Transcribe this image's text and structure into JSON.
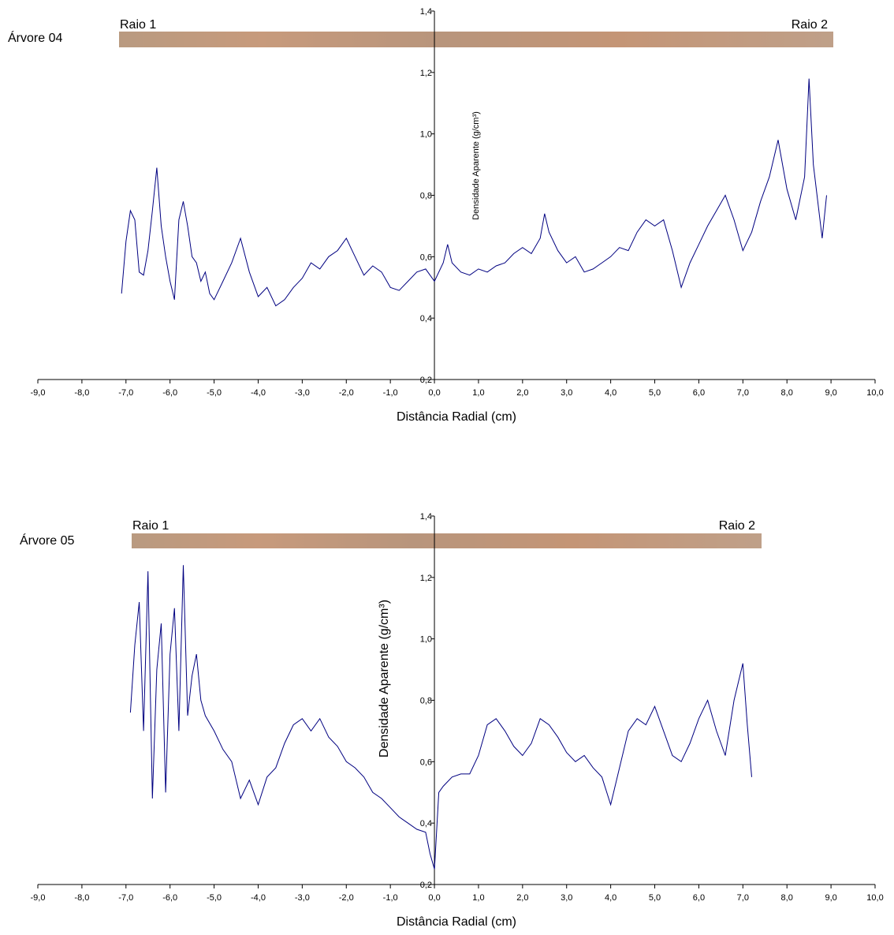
{
  "chart_data": [
    {
      "type": "line",
      "tree_label": "Árvore 04",
      "left_label": "Raio 1",
      "right_label": "Raio 2",
      "xlabel": "Distância Radial (cm)",
      "ylabel": "Densidade Aparente (g/cm³)",
      "color": "#000080",
      "xlim": [
        -9,
        10
      ],
      "ylim": [
        0.2,
        1.4
      ],
      "xticks": [
        {
          "value": -9,
          "label": "-9,0"
        },
        {
          "value": -8,
          "label": "-8,0"
        },
        {
          "value": -7,
          "label": "-7,0"
        },
        {
          "value": -6,
          "label": "-6,0"
        },
        {
          "value": -5,
          "label": "-5,0"
        },
        {
          "value": -4,
          "label": "-4,0"
        },
        {
          "value": -3,
          "label": "-3,0"
        },
        {
          "value": -2,
          "label": "-2,0"
        },
        {
          "value": -1,
          "label": "-1,0"
        },
        {
          "value": 0,
          "label": "0,0"
        },
        {
          "value": 1,
          "label": "1,0"
        },
        {
          "value": 2,
          "label": "2,0"
        },
        {
          "value": 3,
          "label": "3,0"
        },
        {
          "value": 4,
          "label": "4,0"
        },
        {
          "value": 5,
          "label": "5,0"
        },
        {
          "value": 6,
          "label": "6,0"
        },
        {
          "value": 7,
          "label": "7,0"
        },
        {
          "value": 8,
          "label": "8,0"
        },
        {
          "value": 9,
          "label": "9,0"
        },
        {
          "value": 10,
          "label": "10,0"
        }
      ],
      "yticks": [
        {
          "value": 0.2,
          "label": "0,2"
        },
        {
          "value": 0.4,
          "label": "0,4"
        },
        {
          "value": 0.6,
          "label": "0,6"
        },
        {
          "value": 0.8,
          "label": "0,8"
        },
        {
          "value": 1.0,
          "label": "1,0"
        },
        {
          "value": 1.2,
          "label": "1,2"
        },
        {
          "value": 1.4,
          "label": "1,4"
        }
      ],
      "x": [
        -7.1,
        -7.0,
        -6.9,
        -6.8,
        -6.7,
        -6.6,
        -6.5,
        -6.4,
        -6.3,
        -6.2,
        -6.1,
        -6.0,
        -5.9,
        -5.8,
        -5.7,
        -5.6,
        -5.5,
        -5.4,
        -5.3,
        -5.2,
        -5.1,
        -5.0,
        -4.8,
        -4.6,
        -4.4,
        -4.2,
        -4.0,
        -3.8,
        -3.6,
        -3.4,
        -3.2,
        -3.0,
        -2.8,
        -2.6,
        -2.4,
        -2.2,
        -2.0,
        -1.8,
        -1.6,
        -1.4,
        -1.2,
        -1.0,
        -0.8,
        -0.6,
        -0.4,
        -0.2,
        0.0,
        0.2,
        0.3,
        0.4,
        0.6,
        0.8,
        1.0,
        1.2,
        1.4,
        1.6,
        1.8,
        2.0,
        2.2,
        2.4,
        2.5,
        2.6,
        2.8,
        3.0,
        3.2,
        3.4,
        3.6,
        3.8,
        4.0,
        4.2,
        4.4,
        4.6,
        4.8,
        5.0,
        5.2,
        5.4,
        5.6,
        5.8,
        6.0,
        6.2,
        6.4,
        6.6,
        6.8,
        7.0,
        7.2,
        7.4,
        7.6,
        7.8,
        8.0,
        8.2,
        8.4,
        8.5,
        8.6,
        8.8,
        8.9
      ],
      "values": [
        0.48,
        0.65,
        0.75,
        0.72,
        0.55,
        0.54,
        0.62,
        0.75,
        0.89,
        0.7,
        0.6,
        0.52,
        0.46,
        0.72,
        0.78,
        0.7,
        0.6,
        0.58,
        0.52,
        0.55,
        0.48,
        0.46,
        0.52,
        0.58,
        0.66,
        0.55,
        0.47,
        0.5,
        0.44,
        0.46,
        0.5,
        0.53,
        0.58,
        0.56,
        0.6,
        0.62,
        0.66,
        0.6,
        0.54,
        0.57,
        0.55,
        0.5,
        0.49,
        0.52,
        0.55,
        0.56,
        0.52,
        0.58,
        0.64,
        0.58,
        0.55,
        0.54,
        0.56,
        0.55,
        0.57,
        0.58,
        0.61,
        0.63,
        0.61,
        0.66,
        0.74,
        0.68,
        0.62,
        0.58,
        0.6,
        0.55,
        0.56,
        0.58,
        0.6,
        0.63,
        0.62,
        0.68,
        0.72,
        0.7,
        0.72,
        0.62,
        0.5,
        0.58,
        0.64,
        0.7,
        0.75,
        0.8,
        0.72,
        0.62,
        0.68,
        0.78,
        0.86,
        0.98,
        0.82,
        0.72,
        0.86,
        1.18,
        0.9,
        0.66,
        0.8
      ]
    },
    {
      "type": "line",
      "tree_label": "Árvore 05",
      "left_label": "Raio 1",
      "right_label": "Raio 2",
      "xlabel": "Distância Radial (cm)",
      "ylabel": "Densidade Aparente (g/cm³)",
      "color": "#000080",
      "xlim": [
        -9,
        10
      ],
      "ylim": [
        0.2,
        1.4
      ],
      "xticks": [
        {
          "value": -9,
          "label": "-9,0"
        },
        {
          "value": -8,
          "label": "-8,0"
        },
        {
          "value": -7,
          "label": "-7,0"
        },
        {
          "value": -6,
          "label": "-6,0"
        },
        {
          "value": -5,
          "label": "-5,0"
        },
        {
          "value": -4,
          "label": "-4,0"
        },
        {
          "value": -3,
          "label": "-3,0"
        },
        {
          "value": -2,
          "label": "-2,0"
        },
        {
          "value": -1,
          "label": "-1,0"
        },
        {
          "value": 0,
          "label": "0,0"
        },
        {
          "value": 1,
          "label": "1,0"
        },
        {
          "value": 2,
          "label": "2,0"
        },
        {
          "value": 3,
          "label": "3,0"
        },
        {
          "value": 4,
          "label": "4,0"
        },
        {
          "value": 5,
          "label": "5,0"
        },
        {
          "value": 6,
          "label": "6,0"
        },
        {
          "value": 7,
          "label": "7,0"
        },
        {
          "value": 8,
          "label": "8,0"
        },
        {
          "value": 9,
          "label": "9,0"
        },
        {
          "value": 10,
          "label": "10,0"
        }
      ],
      "yticks": [
        {
          "value": 0.2,
          "label": "0,2"
        },
        {
          "value": 0.4,
          "label": "0,4"
        },
        {
          "value": 0.6,
          "label": "0,6"
        },
        {
          "value": 0.8,
          "label": "0,8"
        },
        {
          "value": 1.0,
          "label": "1,0"
        },
        {
          "value": 1.2,
          "label": "1,2"
        },
        {
          "value": 1.4,
          "label": "1,4"
        }
      ],
      "x": [
        -6.9,
        -6.8,
        -6.7,
        -6.6,
        -6.5,
        -6.4,
        -6.3,
        -6.2,
        -6.1,
        -6.0,
        -5.9,
        -5.8,
        -5.7,
        -5.6,
        -5.5,
        -5.4,
        -5.3,
        -5.2,
        -5.0,
        -4.8,
        -4.6,
        -4.4,
        -4.2,
        -4.0,
        -3.8,
        -3.6,
        -3.4,
        -3.2,
        -3.0,
        -2.8,
        -2.6,
        -2.4,
        -2.2,
        -2.0,
        -1.8,
        -1.6,
        -1.4,
        -1.2,
        -1.0,
        -0.8,
        -0.6,
        -0.4,
        -0.2,
        -0.1,
        0.0,
        0.1,
        0.2,
        0.4,
        0.6,
        0.8,
        1.0,
        1.2,
        1.4,
        1.6,
        1.8,
        2.0,
        2.2,
        2.4,
        2.6,
        2.8,
        3.0,
        3.2,
        3.4,
        3.6,
        3.8,
        4.0,
        4.2,
        4.4,
        4.6,
        4.8,
        5.0,
        5.2,
        5.4,
        5.6,
        5.8,
        6.0,
        6.2,
        6.4,
        6.6,
        6.8,
        7.0,
        7.1,
        7.2
      ],
      "values": [
        0.76,
        0.98,
        1.12,
        0.7,
        1.22,
        0.48,
        0.9,
        1.05,
        0.5,
        0.95,
        1.1,
        0.7,
        1.24,
        0.75,
        0.88,
        0.95,
        0.8,
        0.75,
        0.7,
        0.64,
        0.6,
        0.48,
        0.54,
        0.46,
        0.55,
        0.58,
        0.66,
        0.72,
        0.74,
        0.7,
        0.74,
        0.68,
        0.65,
        0.6,
        0.58,
        0.55,
        0.5,
        0.48,
        0.45,
        0.42,
        0.4,
        0.38,
        0.37,
        0.3,
        0.25,
        0.5,
        0.52,
        0.55,
        0.56,
        0.56,
        0.62,
        0.72,
        0.74,
        0.7,
        0.65,
        0.62,
        0.66,
        0.74,
        0.72,
        0.68,
        0.63,
        0.6,
        0.62,
        0.58,
        0.55,
        0.46,
        0.58,
        0.7,
        0.74,
        0.72,
        0.78,
        0.7,
        0.62,
        0.6,
        0.66,
        0.74,
        0.8,
        0.7,
        0.62,
        0.8,
        0.92,
        0.72,
        0.55
      ]
    }
  ]
}
